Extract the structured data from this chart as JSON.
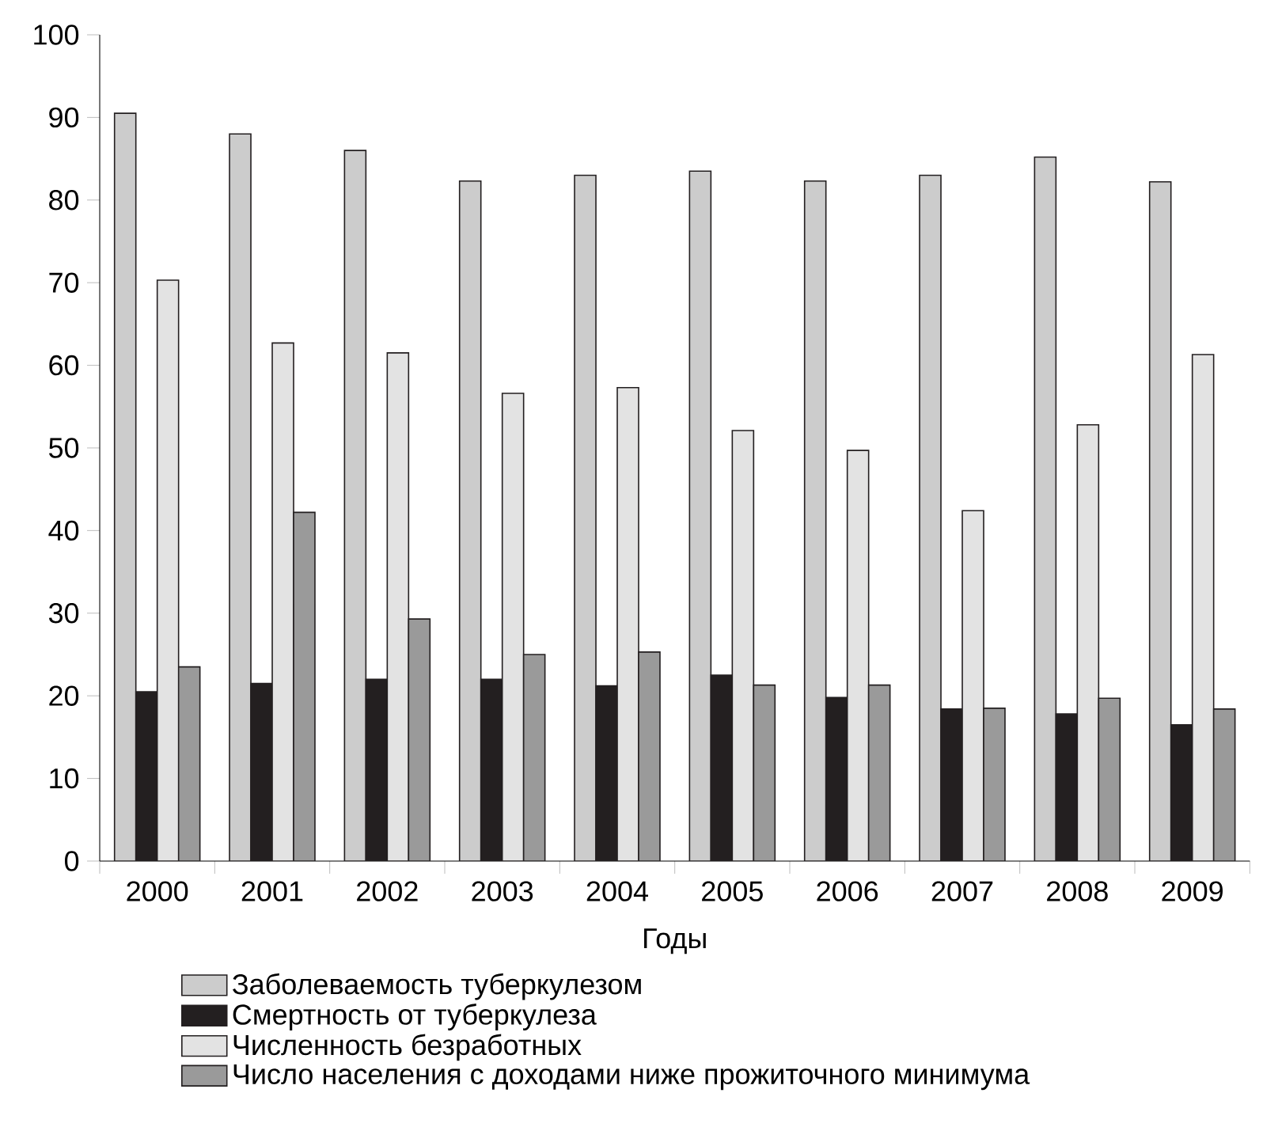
{
  "chart_data": {
    "type": "bar",
    "xlabel": "Годы",
    "categories": [
      "2000",
      "2001",
      "2002",
      "2003",
      "2004",
      "2005",
      "2006",
      "2007",
      "2008",
      "2009"
    ],
    "series": [
      {
        "name": "Заболеваемость туберкулезом",
        "color": "#cccccc",
        "values": [
          90.5,
          88,
          86,
          82.3,
          83,
          83.5,
          82.3,
          83,
          85.2,
          82.2
        ]
      },
      {
        "name": "Смертность от туберкулеза",
        "color": "#231f20",
        "values": [
          20.5,
          21.5,
          22,
          22,
          21.2,
          22.5,
          19.8,
          18.4,
          17.8,
          16.5
        ]
      },
      {
        "name": "Численность безработных",
        "color": "#e3e3e3",
        "values": [
          70.3,
          62.7,
          61.5,
          56.6,
          57.3,
          52.1,
          49.7,
          42.4,
          52.8,
          61.3
        ]
      },
      {
        "name": "Число населения с доходами ниже прожиточного минимума",
        "color": "#9a9a9a",
        "values": [
          23.5,
          42.2,
          29.3,
          25,
          25.3,
          21.3,
          21.3,
          18.5,
          19.7,
          18.4
        ]
      }
    ],
    "ylim": [
      0,
      100
    ],
    "yticks": [
      0,
      10,
      20,
      30,
      40,
      50,
      60,
      70,
      80,
      90,
      100
    ],
    "grid": false,
    "legend": "bottom"
  }
}
